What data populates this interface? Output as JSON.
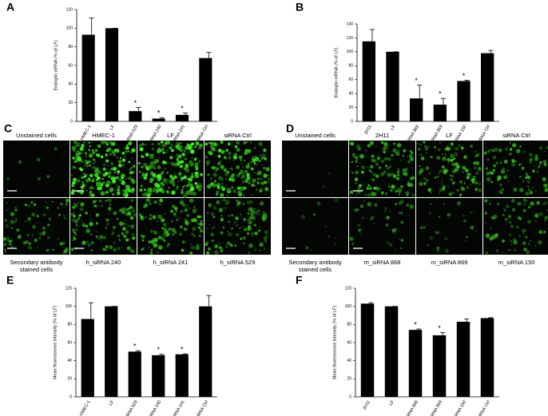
{
  "chart_data": [
    {
      "type": "bar",
      "panel_label": "A",
      "ylabel": "Endoglin mRNA (% of LF)",
      "categories": [
        "HMEC-1",
        "LF",
        "h_siRNA 529",
        "h_siRNA 240",
        "h_siRNA 241",
        "siRNA Ctrl"
      ],
      "values": [
        93,
        100,
        11,
        3,
        7,
        68
      ],
      "errors": [
        18,
        0,
        4,
        1,
        2,
        6
      ],
      "significant": [
        false,
        false,
        true,
        true,
        true,
        false
      ],
      "significance_marker": "*",
      "ylim": [
        0,
        120
      ],
      "yticks": [
        0,
        20,
        40,
        60,
        80,
        100,
        120
      ],
      "color": "#000000"
    },
    {
      "type": "bar",
      "panel_label": "B",
      "ylabel": "Endoglin mRNA (% of LF)",
      "categories": [
        "2H11",
        "LF",
        "m_siRNA 868",
        "m_siRNA 869",
        "m_siRNA 150",
        "siRNA Ctrl"
      ],
      "values": [
        115,
        100,
        33,
        24,
        58,
        98
      ],
      "errors": [
        17,
        0,
        19,
        9,
        1,
        4
      ],
      "significant": [
        false,
        false,
        true,
        true,
        true,
        false
      ],
      "significance_marker": "*",
      "ylim": [
        0,
        140
      ],
      "yticks": [
        0,
        20,
        40,
        60,
        80,
        100,
        120,
        140
      ],
      "color": "#000000"
    },
    {
      "type": "bar",
      "panel_label": "E",
      "ylabel": "Mean fluorescence intensity (% of LF)",
      "categories": [
        "HMEC-1",
        "LF",
        "h_siRNA 529",
        "h_siRNA 240",
        "h_siRNA 241",
        "siRNA Ctrl"
      ],
      "values": [
        86,
        100,
        50,
        46,
        47,
        100
      ],
      "errors": [
        18,
        0,
        1,
        1,
        0.5,
        12
      ],
      "significant": [
        false,
        false,
        true,
        true,
        true,
        false
      ],
      "significance_marker": "*",
      "ylim": [
        0,
        120
      ],
      "yticks": [
        0,
        20,
        40,
        60,
        80,
        100,
        120
      ],
      "color": "#000000"
    },
    {
      "type": "bar",
      "panel_label": "F",
      "ylabel": "Mean fluorescence intensity (% of LF)",
      "categories": [
        "2H11",
        "LF",
        "m_siRNA 868",
        "m_siRNA 869",
        "m_siRNA 150",
        "siRNA Ctrl"
      ],
      "values": [
        103,
        100,
        74,
        68,
        83,
        87
      ],
      "errors": [
        1,
        0,
        1,
        3,
        3,
        0.5
      ],
      "significant": [
        false,
        false,
        true,
        true,
        false,
        false
      ],
      "significance_marker": "*",
      "ylim": [
        0,
        120
      ],
      "yticks": [
        0,
        20,
        40,
        60,
        80,
        100,
        120
      ],
      "color": "#000000"
    }
  ],
  "image_panels": [
    {
      "panel_label": "C",
      "top_labels": [
        "Unstained cells",
        "HMEC-1",
        "LF",
        "siRNA Ctrl"
      ],
      "bottom_labels": [
        "Secondary antibody stained cells",
        "h_siRNA 240",
        "h_siRNA 241",
        "h_siRNA 529"
      ]
    },
    {
      "panel_label": "D",
      "top_labels": [
        "Unstained cells",
        "2H11",
        "LF",
        "siRNA Ctrl"
      ],
      "bottom_labels": [
        "Secondary antibody stained cells",
        "m_siRNA 868",
        "m_siRNA 869",
        "m_siRNA 150"
      ]
    }
  ]
}
